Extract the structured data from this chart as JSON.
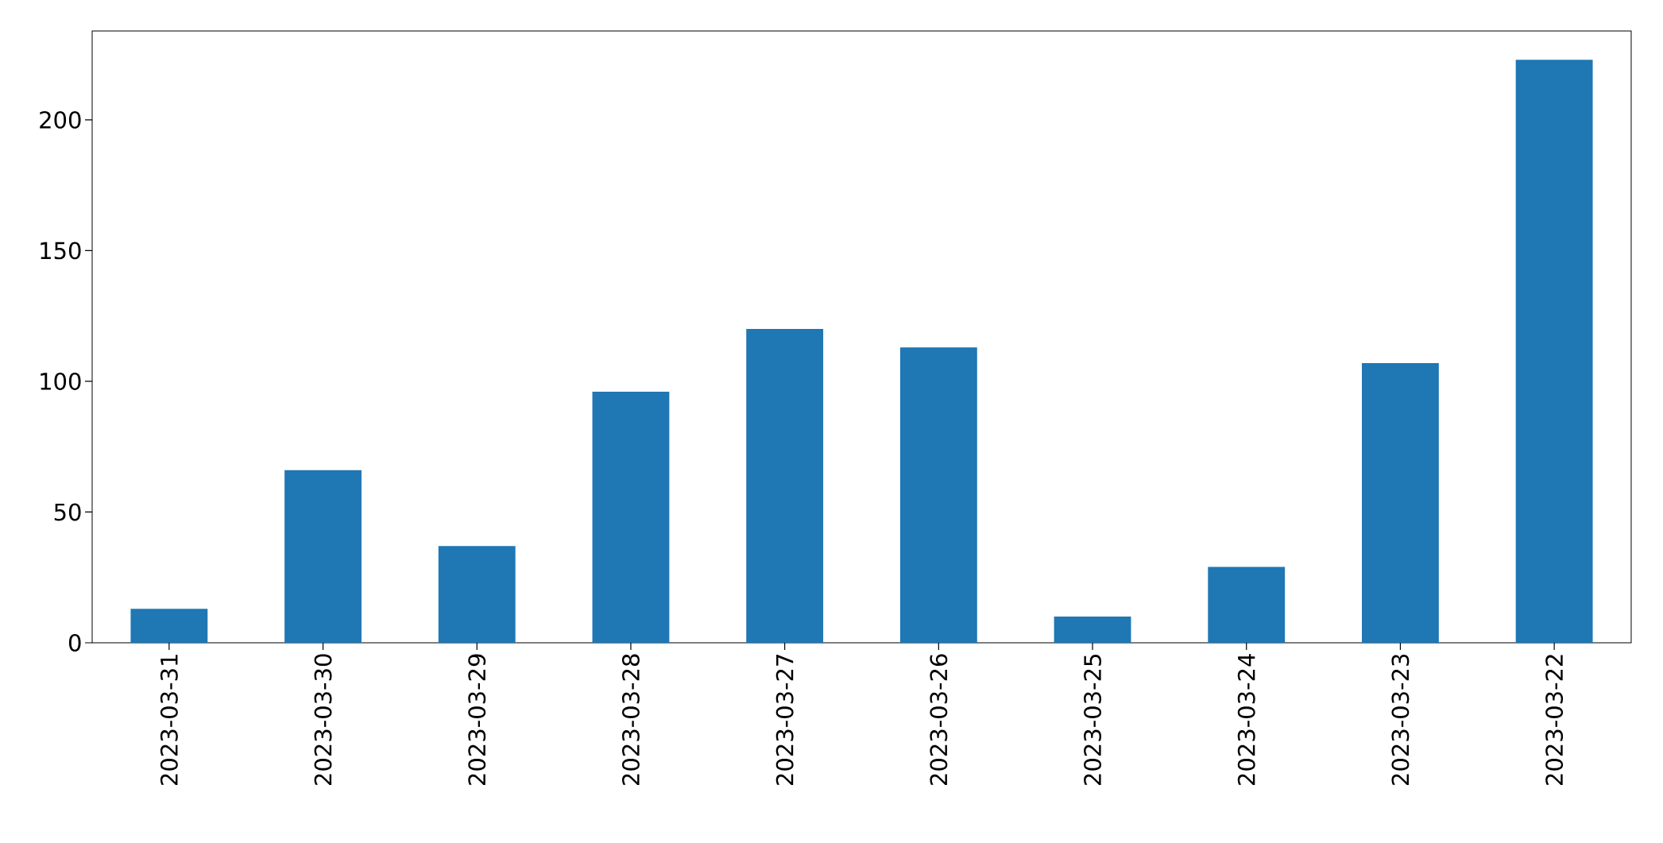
{
  "chart_data": {
    "type": "bar",
    "categories": [
      "2023-03-31",
      "2023-03-30",
      "2023-03-29",
      "2023-03-28",
      "2023-03-27",
      "2023-03-26",
      "2023-03-25",
      "2023-03-24",
      "2023-03-23",
      "2023-03-22"
    ],
    "values": [
      13,
      66,
      37,
      96,
      120,
      113,
      10,
      29,
      107,
      223
    ],
    "color": "#1f77b4",
    "ylim": [
      0,
      234
    ],
    "yticks": [
      0,
      50,
      100,
      150,
      200
    ]
  }
}
